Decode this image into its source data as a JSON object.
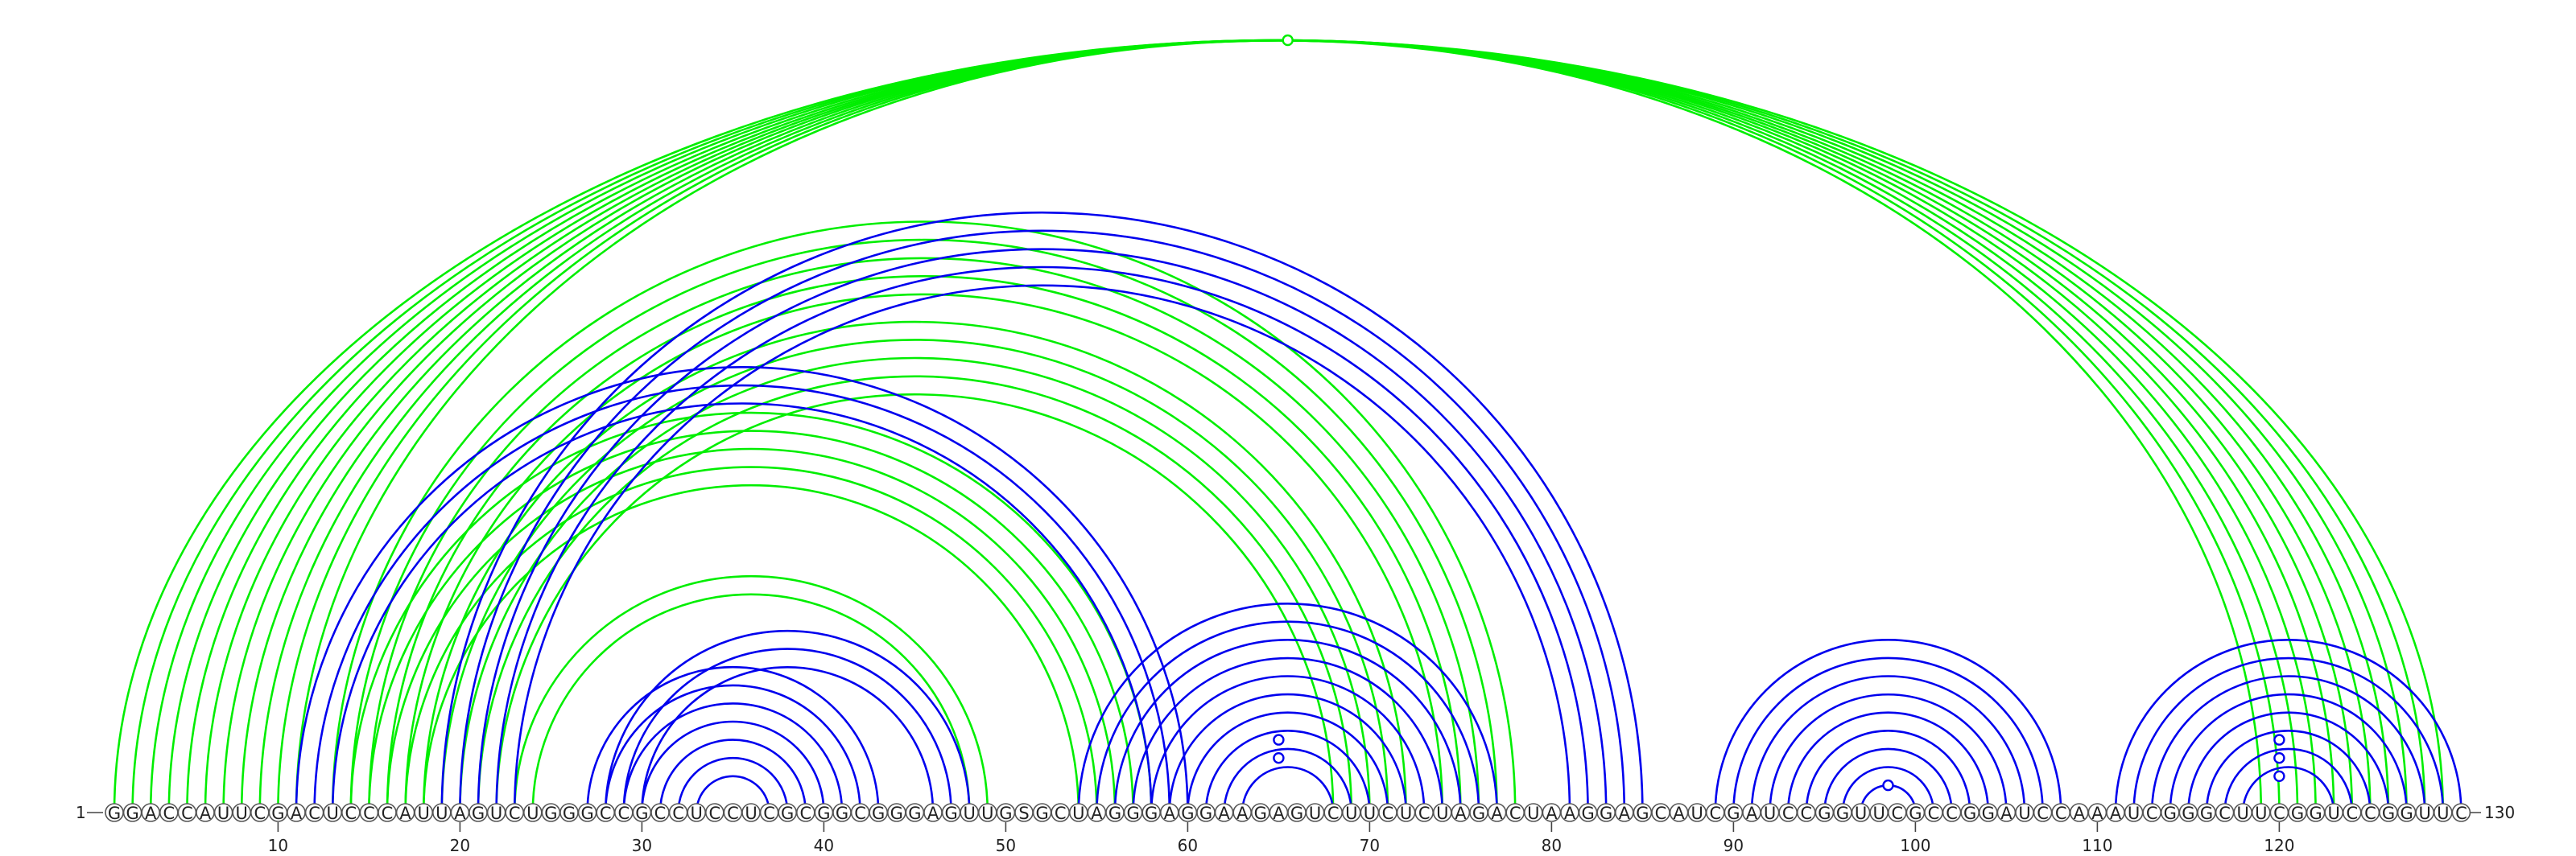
{
  "sequence": "GGACCAUUCGACUCCCAUUAGUCUGGGCCGCCUCCUCGCGGCGGGAGUUGSGCUAGGGAGGAAGAGUCUUCUCUAGACUAAGGAGCAUCGAUCCGGUUCGCCGGAUCCAAAUCGGGCUUCGGUCCGGUUC",
  "start_label": "1",
  "end_label": "130",
  "tick_positions": [
    10,
    20,
    30,
    40,
    50,
    60,
    70,
    80,
    90,
    100,
    110,
    120
  ],
  "colors": {
    "structure_a": "#0000ee",
    "structure_b": "#00ee00"
  },
  "structure_a_pairs": [
    [
      11,
      60
    ],
    [
      12,
      59
    ],
    [
      13,
      58
    ],
    [
      19,
      85
    ],
    [
      20,
      84
    ],
    [
      21,
      83
    ],
    [
      22,
      82
    ],
    [
      23,
      81
    ],
    [
      28,
      48
    ],
    [
      29,
      47
    ],
    [
      30,
      46
    ],
    [
      27,
      43
    ],
    [
      28,
      42
    ],
    [
      29,
      41
    ],
    [
      30,
      40
    ],
    [
      31,
      39
    ],
    [
      32,
      38
    ],
    [
      33,
      37
    ],
    [
      54,
      77
    ],
    [
      55,
      76
    ],
    [
      56,
      75
    ],
    [
      57,
      74
    ],
    [
      58,
      73
    ],
    [
      59,
      72
    ],
    [
      60,
      71
    ],
    [
      61,
      70
    ],
    [
      62,
      69
    ],
    [
      63,
      68
    ],
    [
      89,
      108
    ],
    [
      90,
      107
    ],
    [
      91,
      106
    ],
    [
      92,
      105
    ],
    [
      93,
      104
    ],
    [
      94,
      103
    ],
    [
      95,
      102
    ],
    [
      96,
      101
    ],
    [
      97,
      100
    ],
    [
      111,
      130
    ],
    [
      112,
      129
    ],
    [
      113,
      128
    ],
    [
      114,
      127
    ],
    [
      115,
      126
    ],
    [
      116,
      125
    ],
    [
      117,
      124
    ],
    [
      118,
      123
    ]
  ],
  "structure_a_markers": [
    [
      61,
      69
    ],
    [
      62,
      68
    ],
    [
      97,
      100
    ],
    [
      116,
      124
    ],
    [
      117,
      123
    ],
    [
      118,
      122
    ]
  ],
  "structure_b_pairs": [
    [
      1,
      129
    ],
    [
      2,
      128
    ],
    [
      3,
      127
    ],
    [
      4,
      126
    ],
    [
      5,
      125
    ],
    [
      6,
      124
    ],
    [
      7,
      123
    ],
    [
      8,
      122
    ],
    [
      9,
      121
    ],
    [
      10,
      120
    ],
    [
      11,
      119
    ],
    [
      13,
      78
    ],
    [
      14,
      77
    ],
    [
      15,
      76
    ],
    [
      16,
      75
    ],
    [
      17,
      74
    ],
    [
      18,
      72
    ],
    [
      19,
      71
    ],
    [
      20,
      70
    ],
    [
      21,
      69
    ],
    [
      22,
      68
    ],
    [
      14,
      58
    ],
    [
      15,
      57
    ],
    [
      16,
      56
    ],
    [
      17,
      55
    ],
    [
      18,
      54
    ],
    [
      23,
      49
    ],
    [
      24,
      48
    ]
  ],
  "structure_b_markers": [
    [
      1,
      130
    ]
  ]
}
